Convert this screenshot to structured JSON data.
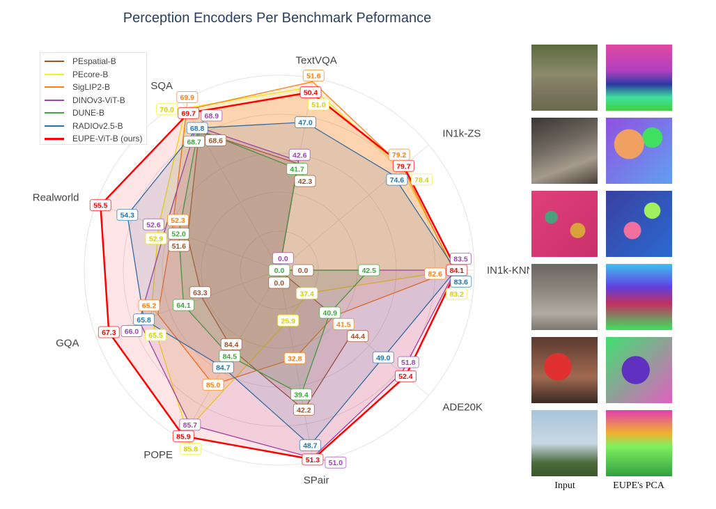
{
  "chart_data": {
    "type": "radar",
    "title": "Perception Encoders Per Benchmark Peformance",
    "axes": [
      "TextVQA",
      "IN1k-ZS",
      "IN1k-KNN",
      "ADE20K",
      "SPair",
      "POPE",
      "GQA",
      "Realworld",
      "SQA"
    ],
    "axis_ranges": [
      [
        30.2,
        52.0
      ],
      [
        20.3,
        91.7
      ],
      [
        0,
        92.4
      ],
      [
        33.2,
        55.9
      ],
      [
        16.7,
        51.8
      ],
      [
        83.0,
        85.95
      ],
      [
        60.0,
        67.85
      ],
      [
        47.5,
        55.7
      ],
      [
        60.3,
        70.4
      ]
    ],
    "legend_position": "top-left",
    "grid": true,
    "series": [
      {
        "name": "PEspatial-B",
        "color": "#a0522d",
        "values": [
          42.3,
          0.0,
          0.0,
          44.4,
          42.2,
          84.4,
          63.3,
          51.6,
          68.6
        ]
      },
      {
        "name": "PEcore-B",
        "color": "#f2ee1a",
        "values": [
          51.0,
          78.4,
          83.2,
          37.4,
          25.9,
          85.8,
          65.5,
          52.9,
          70.0
        ]
      },
      {
        "name": "SigLIP2-B",
        "color": "#ff7f0e",
        "values": [
          51.6,
          79.2,
          82.6,
          41.5,
          32.8,
          85.0,
          65.2,
          52.3,
          69.9
        ]
      },
      {
        "name": "DINOv3-ViT-B",
        "color": "#9b45b0",
        "values": [
          42.6,
          0.0,
          83.5,
          51.8,
          51.0,
          85.7,
          66.0,
          52.6,
          68.9
        ]
      },
      {
        "name": "DUNE-B",
        "color": "#3aaa3a",
        "values": [
          41.7,
          0.0,
          42.5,
          40.9,
          39.4,
          84.5,
          64.1,
          52.0,
          68.7
        ]
      },
      {
        "name": "RADIOv2.5-B",
        "color": "#1f77b4",
        "values": [
          47.0,
          74.6,
          83.6,
          49.0,
          48.7,
          84.7,
          65.8,
          54.3,
          68.8
        ]
      },
      {
        "name": "EUPE-ViT-B (ours)",
        "color": "#ff0000",
        "values": [
          50.4,
          79.7,
          84.1,
          52.4,
          51.3,
          85.9,
          67.3,
          55.5,
          69.7
        ]
      }
    ]
  },
  "gallery": {
    "captions": {
      "input": "Input",
      "pca": "EUPE's PCA"
    },
    "rows": [
      {
        "input": "giraffes-zebras-photo",
        "pca": "giraffes-zebras-pca"
      },
      {
        "input": "dogs-photo",
        "pca": "dogs-pca"
      },
      {
        "input": "food-table-photo",
        "pca": "food-table-pca"
      },
      {
        "input": "workshop-photo",
        "pca": "workshop-pca"
      },
      {
        "input": "happy-holidays-bag-photo",
        "pca": "happy-holidays-bag-pca"
      },
      {
        "input": "water-tower-photo",
        "pca": "water-tower-pca"
      }
    ]
  }
}
